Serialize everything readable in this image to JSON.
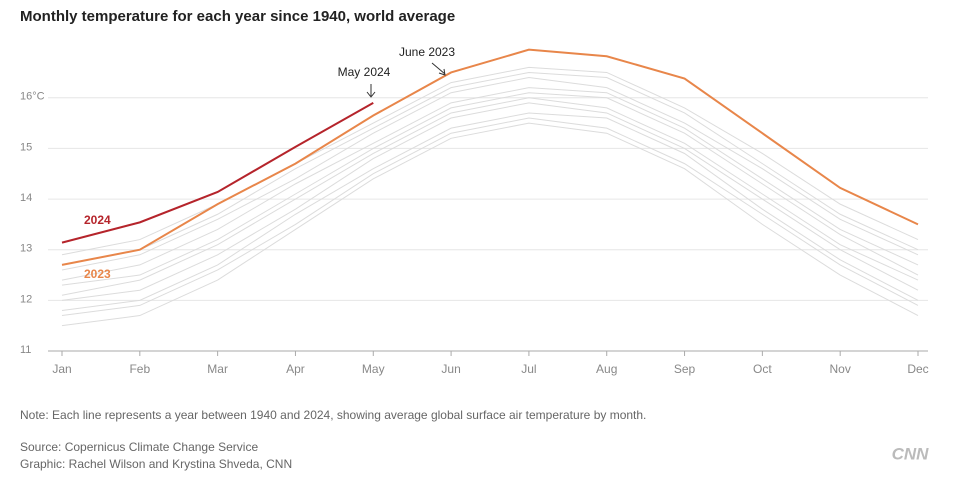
{
  "chart_data": {
    "type": "line",
    "title": "Monthly temperature for each year since 1940, world average",
    "categories": [
      "Jan",
      "Feb",
      "Mar",
      "Apr",
      "May",
      "Jun",
      "Jul",
      "Aug",
      "Sep",
      "Oct",
      "Nov",
      "Dec"
    ],
    "ylim": [
      11,
      17.2
    ],
    "yticks": [
      11,
      12,
      13,
      14,
      15,
      {
        "value": 16,
        "label": "16°C"
      }
    ],
    "grid": true,
    "series": [
      {
        "color": "#dcdcdc",
        "values": [
          11.5,
          11.7,
          12.4,
          13.4,
          14.4,
          15.2,
          15.5,
          15.3,
          14.6,
          13.5,
          12.5,
          11.7
        ]
      },
      {
        "color": "#dcdcdc",
        "values": [
          11.7,
          11.9,
          12.6,
          13.5,
          14.5,
          15.3,
          15.6,
          15.4,
          14.7,
          13.7,
          12.7,
          11.9
        ]
      },
      {
        "color": "#dcdcdc",
        "values": [
          11.8,
          12.0,
          12.7,
          13.7,
          14.6,
          15.4,
          15.7,
          15.6,
          14.9,
          13.8,
          12.8,
          12.0
        ]
      },
      {
        "color": "#dcdcdc",
        "values": [
          12.0,
          12.2,
          12.9,
          13.8,
          14.8,
          15.6,
          15.9,
          15.7,
          15.0,
          14.0,
          13.0,
          12.2
        ]
      },
      {
        "color": "#dcdcdc",
        "values": [
          12.1,
          12.4,
          13.1,
          14.0,
          14.9,
          15.7,
          16.0,
          15.8,
          15.1,
          14.1,
          13.1,
          12.4
        ]
      },
      {
        "color": "#dcdcdc",
        "values": [
          12.3,
          12.5,
          13.2,
          14.1,
          15.0,
          15.8,
          16.1,
          16.0,
          15.3,
          14.3,
          13.3,
          12.5
        ]
      },
      {
        "color": "#dcdcdc",
        "values": [
          12.4,
          12.7,
          13.4,
          14.3,
          15.1,
          15.9,
          16.2,
          16.1,
          15.4,
          14.4,
          13.4,
          12.7
        ]
      },
      {
        "color": "#dcdcdc",
        "values": [
          12.6,
          12.9,
          13.6,
          14.4,
          15.3,
          16.1,
          16.4,
          16.2,
          15.5,
          14.6,
          13.6,
          12.9
        ]
      },
      {
        "color": "#dcdcdc",
        "values": [
          12.7,
          13.0,
          13.7,
          14.6,
          15.4,
          16.2,
          16.5,
          16.4,
          15.7,
          14.7,
          13.7,
          13.0
        ]
      },
      {
        "color": "#dcdcdc",
        "values": [
          12.9,
          13.2,
          13.9,
          14.7,
          15.5,
          16.3,
          16.6,
          16.5,
          15.8,
          14.9,
          13.9,
          13.2
        ]
      },
      {
        "name": "2023",
        "color": "#e8864a",
        "values": [
          12.7,
          13.0,
          13.9,
          14.7,
          15.65,
          16.5,
          16.95,
          16.82,
          16.38,
          15.3,
          14.22,
          13.5
        ]
      },
      {
        "name": "2024",
        "color": "#b5242b",
        "values": [
          13.14,
          13.54,
          14.14,
          15.03,
          15.9,
          null,
          null,
          null,
          null,
          null,
          null,
          null
        ]
      }
    ],
    "annotations": [
      "May 2024",
      "June 2023"
    ],
    "note": "Note: Each line represents a year between 1940 and 2024, showing average global surface air temperature by month.",
    "source": "Source: Copernicus Climate Change Service",
    "credit": "Graphic: Rachel Wilson and Krystina Shveda, CNN",
    "logo": "CNN"
  }
}
